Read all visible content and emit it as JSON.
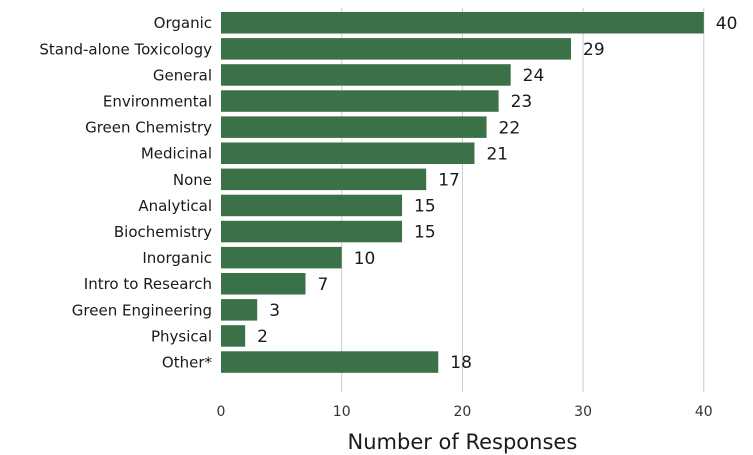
{
  "chart_data": {
    "type": "bar",
    "orientation": "horizontal",
    "categories": [
      "Organic",
      "Stand-alone Toxicology",
      "General",
      "Environmental",
      "Green Chemistry",
      "Medicinal",
      "None",
      "Analytical",
      "Biochemistry",
      "Inorganic",
      "Intro to Research",
      "Green Engineering",
      "Physical",
      "Other*"
    ],
    "values": [
      40,
      29,
      24,
      23,
      22,
      21,
      17,
      15,
      15,
      10,
      7,
      3,
      2,
      18
    ],
    "xlabel": "Number of Responses",
    "ylabel": "",
    "xlim": [
      0,
      44
    ],
    "xticks": [
      0,
      10,
      20,
      30,
      40
    ],
    "grid": "vertical",
    "bar_color": "#3a7148"
  }
}
